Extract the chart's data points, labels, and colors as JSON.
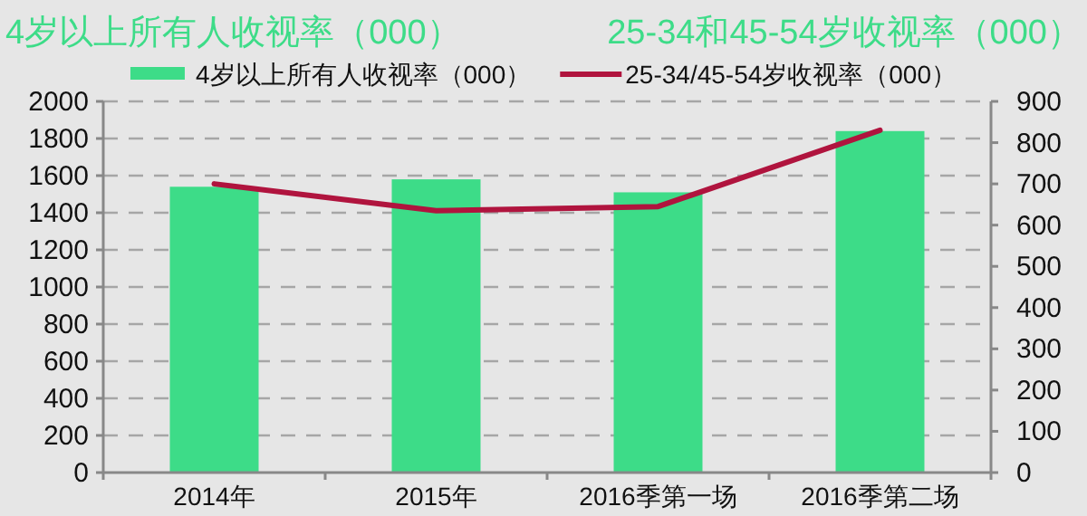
{
  "chart_data": {
    "type": "bar",
    "ylabel": "4岁以上所有人收视率（000）",
    "y2label": "25-34和45-54岁收视率（000）",
    "categories": [
      "2014年",
      "2015年",
      "2016季第一场",
      "2016季第二场"
    ],
    "series": [
      {
        "name": "4岁以上所有人收视率（000）",
        "color": "#3ddc88",
        "values": [
          1540,
          1580,
          1510,
          1840
        ]
      },
      {
        "name": "25-34/45-54岁收视率（000）",
        "type": "line",
        "axis": "y2",
        "color": "#b0143e",
        "values": [
          700,
          635,
          645,
          830
        ]
      }
    ],
    "ylim": [
      0,
      2000
    ],
    "yticks": [
      0,
      200,
      400,
      600,
      800,
      1000,
      1200,
      1400,
      1600,
      1800,
      2000
    ],
    "y2lim": [
      0,
      900
    ],
    "y2ticks": [
      0,
      100,
      200,
      300,
      400,
      500,
      600,
      700,
      800,
      900
    ],
    "grid": "y",
    "legend": "top",
    "marker": "none",
    "line_style": "solid"
  }
}
